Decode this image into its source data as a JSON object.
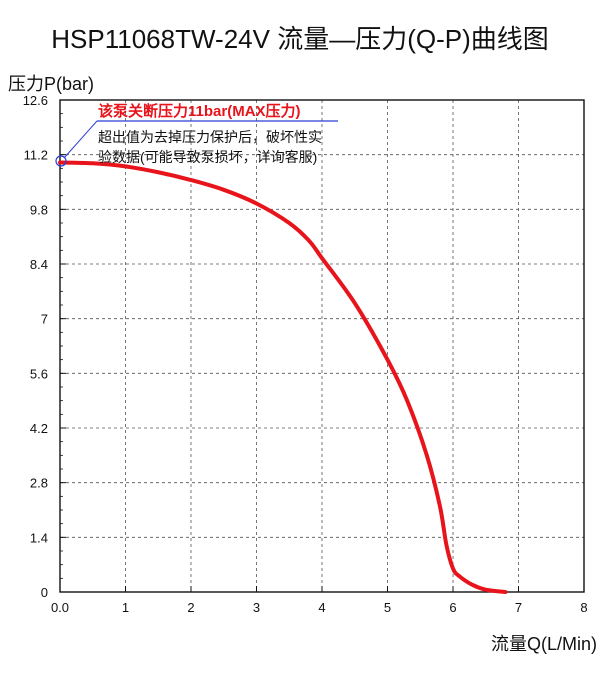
{
  "chart_data": {
    "type": "line",
    "title": "HSP11068TW-24V 流量—压力(Q-P)曲线图",
    "xlabel": "流量Q(L/Min)",
    "ylabel": "压力P(bar)",
    "xlim": [
      0,
      8
    ],
    "ylim": [
      0,
      12.6
    ],
    "x_ticks": [
      "0.0",
      "1",
      "2",
      "3",
      "4",
      "5",
      "6",
      "7",
      "8"
    ],
    "y_ticks": [
      "0",
      "1.4",
      "2.8",
      "4.2",
      "5.6",
      "7",
      "8.4",
      "9.8",
      "11.2",
      "12.6"
    ],
    "grid": "dashed",
    "series": [
      {
        "color": "#e8141b",
        "x": [
          0.0,
          0.5,
          1.0,
          1.5,
          2.0,
          2.5,
          3.0,
          3.5,
          3.8,
          4.0,
          4.5,
          5.0,
          5.3,
          5.6,
          5.8,
          5.9,
          6.0,
          6.1,
          6.3,
          6.5,
          6.8
        ],
        "y": [
          11.0,
          10.98,
          10.9,
          10.75,
          10.55,
          10.3,
          9.95,
          9.45,
          9.0,
          8.55,
          7.4,
          5.95,
          4.9,
          3.5,
          2.2,
          1.2,
          0.6,
          0.4,
          0.18,
          0.06,
          0.0
        ]
      }
    ],
    "annotations": {
      "headline": "该泵关断压力11bar(MAX压力)",
      "note_line1": "超出值为去掉压力保护后，破坏性实",
      "note_line2": "验数据(可能导致泵损坏，详询客服)"
    }
  }
}
